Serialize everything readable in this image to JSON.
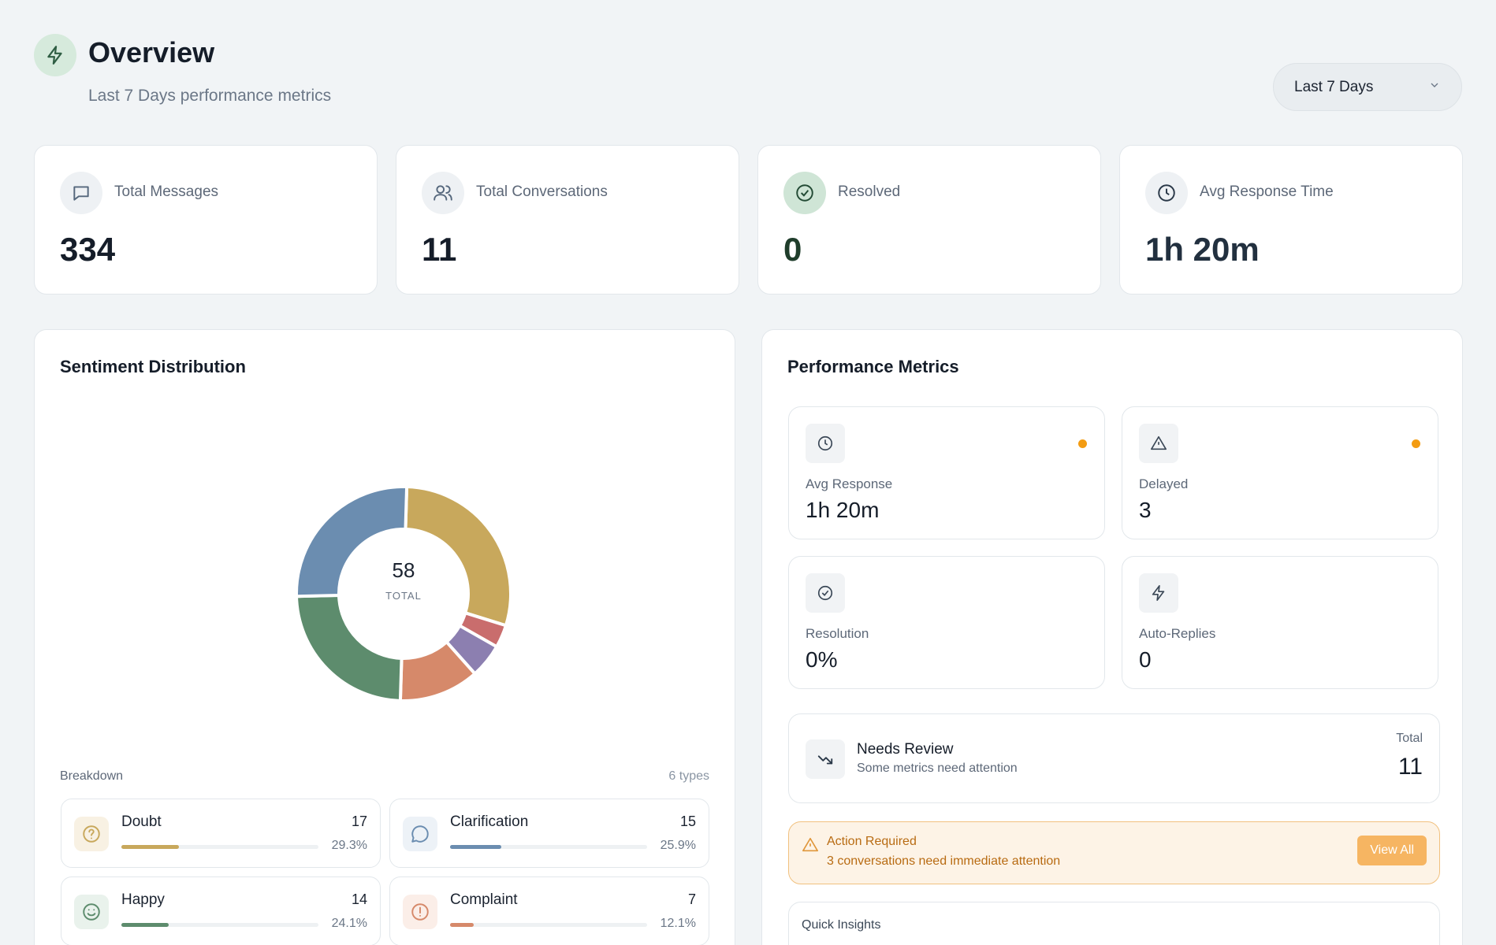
{
  "header": {
    "title": "Overview",
    "subtitle": "Last 7 Days performance metrics",
    "range_selected": "Last 7 Days",
    "icon": "bolt-icon"
  },
  "stats": [
    {
      "label": "Total Messages",
      "value": "334",
      "icon": "message-icon"
    },
    {
      "label": "Total Conversations",
      "value": "11",
      "icon": "users-icon"
    },
    {
      "label": "Resolved",
      "value": "0",
      "icon": "check-circle-icon"
    },
    {
      "label": "Avg Response Time",
      "value": "1h 20m",
      "icon": "clock-icon"
    }
  ],
  "sentiment": {
    "title": "Sentiment Distribution",
    "total_value": "58",
    "total_label": "TOTAL",
    "breakdown_label": "Breakdown",
    "types_count": "6 types",
    "items": [
      {
        "name": "Doubt",
        "count": "17",
        "pct": "29.3%",
        "color": "#c8a85c"
      },
      {
        "name": "Clarification",
        "count": "15",
        "pct": "25.9%",
        "color": "#6b8db0"
      },
      {
        "name": "Happy",
        "count": "14",
        "pct": "24.1%",
        "color": "#5d8c6d"
      },
      {
        "name": "Complaint",
        "count": "7",
        "pct": "12.1%",
        "color": "#d6896a"
      }
    ]
  },
  "chart_data": {
    "type": "pie",
    "title": "Sentiment Distribution",
    "categories": [
      "Doubt",
      "",
      "",
      "Complaint",
      "Happy",
      "Clarification"
    ],
    "values": [
      17,
      2,
      3,
      7,
      14,
      15
    ],
    "colors": [
      "#c8a85c",
      "#c96d6d",
      "#8c7fb0",
      "#d6896a",
      "#5d8c6d",
      "#6b8db0"
    ]
  },
  "performance": {
    "title": "Performance Metrics",
    "metrics": [
      {
        "label": "Avg Response",
        "value": "1h 20m",
        "icon": "clock-icon"
      },
      {
        "label": "Delayed",
        "value": "3",
        "icon": "alert-triangle-icon"
      },
      {
        "label": "Resolution",
        "value": "0%",
        "icon": "check-circle-icon"
      },
      {
        "label": "Auto-Replies",
        "value": "0",
        "icon": "bolt-icon"
      }
    ],
    "review": {
      "title": "Needs Review",
      "subtitle": "Some metrics need attention",
      "total_label": "Total",
      "total_value": "11"
    },
    "alert": {
      "title": "Action Required",
      "message": "3 conversations need immediate attention",
      "button": "View All"
    },
    "insights_title": "Quick Insights"
  }
}
